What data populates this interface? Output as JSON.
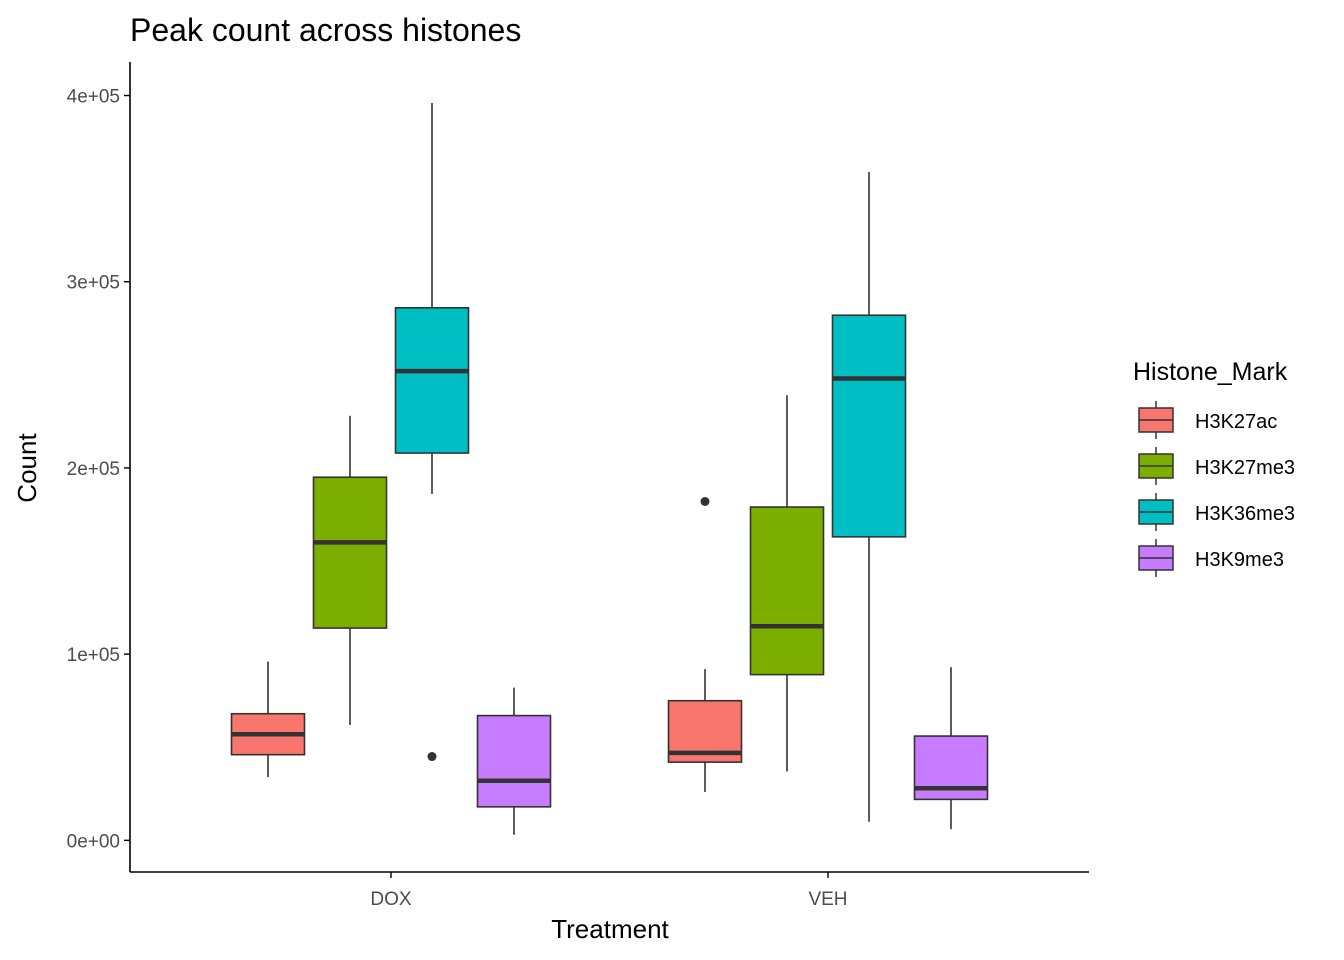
{
  "chart_data": {
    "type": "boxplot",
    "title": "Peak count across histones",
    "xlabel": "Treatment",
    "ylabel": "Count",
    "categories": [
      "DOX",
      "VEH"
    ],
    "ylim": [
      -17000,
      418000
    ],
    "yticks": [
      {
        "value": 0,
        "label": "0e+00"
      },
      {
        "value": 100000,
        "label": "1e+05"
      },
      {
        "value": 200000,
        "label": "2e+05"
      },
      {
        "value": 300000,
        "label": "3e+05"
      },
      {
        "value": 400000,
        "label": "4e+05"
      }
    ],
    "grid": false,
    "legend": {
      "title": "Histone_Mark",
      "position": "right"
    },
    "series": [
      {
        "name": "H3K27ac",
        "color": "#F8766D",
        "boxes": [
          {
            "category": "DOX",
            "min": 34000,
            "q1": 46000,
            "median": 57000,
            "q3": 68000,
            "max": 96000,
            "outliers": []
          },
          {
            "category": "VEH",
            "min": 26000,
            "q1": 42000,
            "median": 47000,
            "q3": 75000,
            "max": 92000,
            "outliers": [
              182000
            ]
          }
        ]
      },
      {
        "name": "H3K27me3",
        "color": "#7CAE00",
        "boxes": [
          {
            "category": "DOX",
            "min": 62000,
            "q1": 114000,
            "median": 160000,
            "q3": 195000,
            "max": 228000,
            "outliers": []
          },
          {
            "category": "VEH",
            "min": 37000,
            "q1": 89000,
            "median": 115000,
            "q3": 179000,
            "max": 239000,
            "outliers": []
          }
        ]
      },
      {
        "name": "H3K36me3",
        "color": "#00BFC4",
        "boxes": [
          {
            "category": "DOX",
            "min": 186000,
            "q1": 208000,
            "median": 252000,
            "q3": 286000,
            "max": 396000,
            "outliers": [
              45000
            ]
          },
          {
            "category": "VEH",
            "min": 10000,
            "q1": 163000,
            "median": 248000,
            "q3": 282000,
            "max": 359000,
            "outliers": []
          }
        ]
      },
      {
        "name": "H3K9me3",
        "color": "#C77CFF",
        "boxes": [
          {
            "category": "DOX",
            "min": 3000,
            "q1": 18000,
            "median": 32000,
            "q3": 67000,
            "max": 82000,
            "outliers": []
          },
          {
            "category": "VEH",
            "min": 6000,
            "q1": 22000,
            "median": 28000,
            "q3": 56000,
            "max": 93000,
            "outliers": []
          }
        ]
      }
    ]
  }
}
